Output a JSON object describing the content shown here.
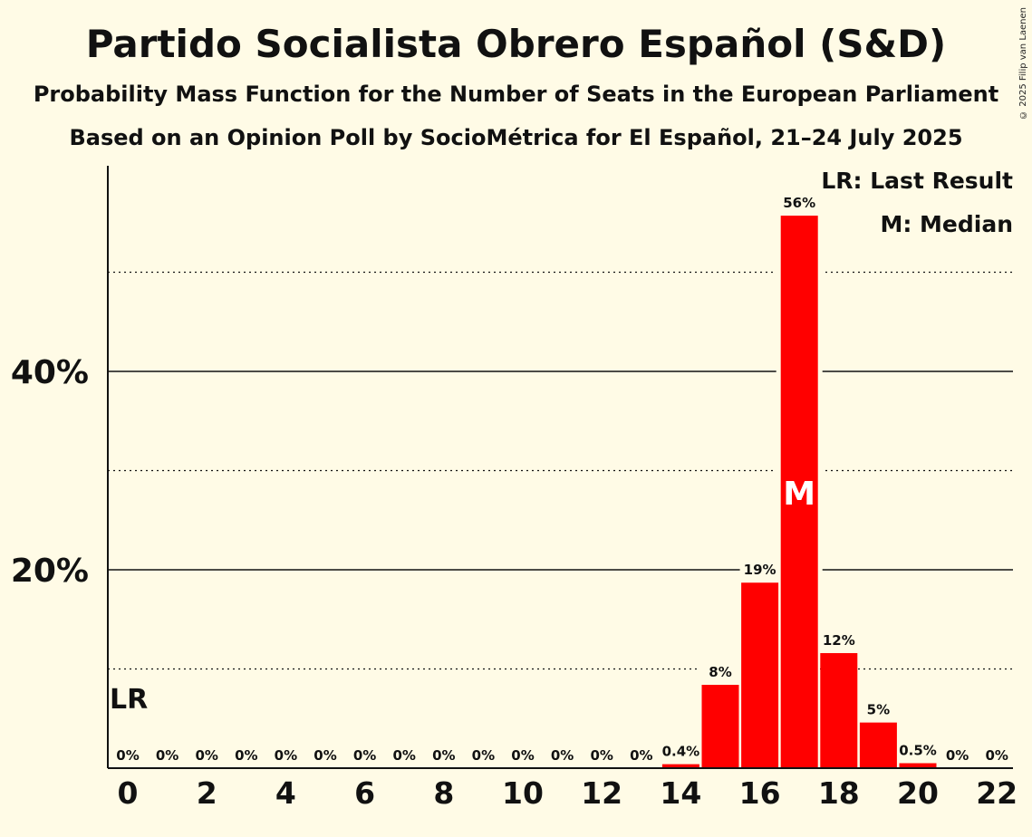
{
  "title": "Partido Socialista Obrero Español (S&D)",
  "subtitle1": "Probability Mass Function for the Number of Seats in the European Parliament",
  "subtitle2": "Based on an Opinion Poll by SocioMétrica for El Español, 21–24 July 2025",
  "copyright": "© 2025 Filip van Laenen",
  "legend": {
    "last_result": "LR: Last Result",
    "median": "M: Median"
  },
  "markers": {
    "last_result_label": "LR",
    "last_result_seat": 0,
    "median_label": "M",
    "median_seat": 17
  },
  "colors": {
    "bar": "#ff0000",
    "background": "#fffbe6",
    "text": "#111111"
  },
  "chart_data": {
    "type": "bar",
    "x": [
      0,
      1,
      2,
      3,
      4,
      5,
      6,
      7,
      8,
      9,
      10,
      11,
      12,
      13,
      14,
      15,
      16,
      17,
      18,
      19,
      20,
      21,
      22
    ],
    "values": [
      0,
      0,
      0,
      0,
      0,
      0,
      0,
      0,
      0,
      0,
      0,
      0,
      0,
      0,
      0.4,
      8.4,
      18.7,
      55.7,
      11.6,
      4.6,
      0.5,
      0,
      0
    ],
    "data_labels": [
      "0%",
      "0%",
      "0%",
      "0%",
      "0%",
      "0%",
      "0%",
      "0%",
      "0%",
      "0%",
      "0%",
      "0%",
      "0%",
      "0%",
      "0.4%",
      "8%",
      "19%",
      "56%",
      "12%",
      "5%",
      "0.5%",
      "0%",
      "0%"
    ],
    "x_tick_labels": [
      "0",
      "2",
      "4",
      "6",
      "8",
      "10",
      "12",
      "14",
      "16",
      "18",
      "20",
      "22"
    ],
    "x_tick_values": [
      0,
      2,
      4,
      6,
      8,
      10,
      12,
      14,
      16,
      18,
      20,
      22
    ],
    "y_tick_labels": [
      "20%",
      "40%"
    ],
    "y_tick_values": [
      20,
      40
    ],
    "y_gridlines_dotted": [
      10,
      30,
      50
    ],
    "ylim": [
      0,
      61
    ],
    "xlabel": "",
    "ylabel": "",
    "grid": true
  }
}
